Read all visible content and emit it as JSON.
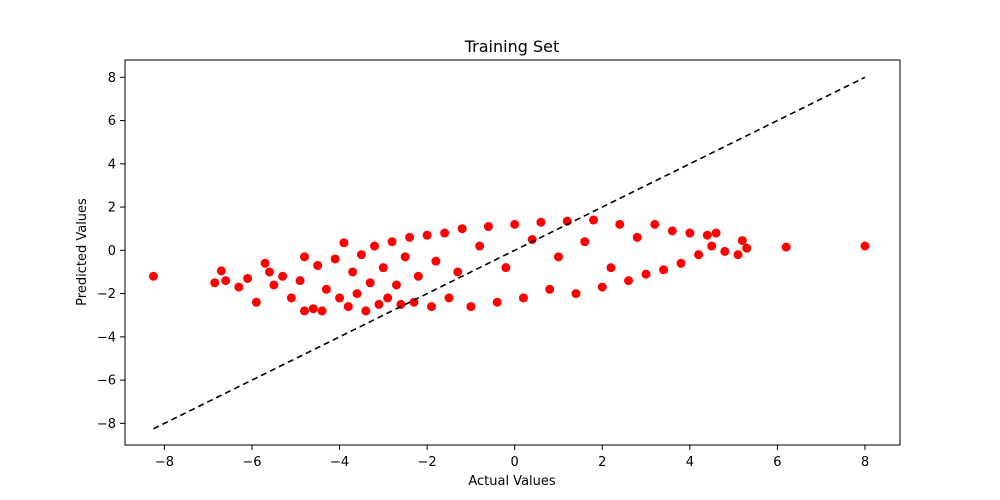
{
  "chart_data": {
    "type": "scatter",
    "title": "Training Set",
    "xlabel": "Actual Values",
    "ylabel": "Predicted Values",
    "xlim": [
      -8.9,
      8.8
    ],
    "ylim": [
      -9.0,
      8.8
    ],
    "xticks": [
      -8,
      -6,
      -4,
      -2,
      0,
      2,
      4,
      6,
      8
    ],
    "yticks": [
      -8,
      -6,
      -4,
      -2,
      0,
      2,
      4,
      6,
      8
    ],
    "xtick_labels": [
      "−8",
      "−6",
      "−4",
      "−2",
      "0",
      "2",
      "4",
      "6",
      "8"
    ],
    "ytick_labels": [
      "−8",
      "−6",
      "−4",
      "−2",
      "0",
      "2",
      "4",
      "6",
      "8"
    ],
    "grid": false,
    "marker_color": "#ff0000",
    "reference_line": {
      "style": "dashed",
      "color": "#000000",
      "from": [
        -8.25,
        -8.25
      ],
      "to": [
        8.0,
        8.0
      ]
    },
    "series": [
      {
        "points": [
          [
            -8.25,
            -1.2
          ],
          [
            -6.85,
            -1.5
          ],
          [
            -6.7,
            -0.95
          ],
          [
            -6.6,
            -1.4
          ],
          [
            -6.3,
            -1.7
          ],
          [
            -6.1,
            -1.3
          ],
          [
            -5.9,
            -2.4
          ],
          [
            -5.7,
            -0.6
          ],
          [
            -5.6,
            -1.0
          ],
          [
            -5.5,
            -1.6
          ],
          [
            -5.3,
            -1.2
          ],
          [
            -5.1,
            -2.2
          ],
          [
            -4.9,
            -1.4
          ],
          [
            -4.8,
            -0.3
          ],
          [
            -4.8,
            -2.8
          ],
          [
            -4.6,
            -2.7
          ],
          [
            -4.5,
            -0.7
          ],
          [
            -4.4,
            -2.8
          ],
          [
            -4.3,
            -1.8
          ],
          [
            -4.1,
            -0.4
          ],
          [
            -4.0,
            -2.2
          ],
          [
            -3.9,
            0.35
          ],
          [
            -3.8,
            -2.6
          ],
          [
            -3.7,
            -1.0
          ],
          [
            -3.6,
            -2.0
          ],
          [
            -3.5,
            -0.2
          ],
          [
            -3.4,
            -2.8
          ],
          [
            -3.3,
            -1.5
          ],
          [
            -3.2,
            0.2
          ],
          [
            -3.1,
            -2.5
          ],
          [
            -3.0,
            -0.8
          ],
          [
            -2.9,
            -2.2
          ],
          [
            -2.8,
            0.4
          ],
          [
            -2.7,
            -1.6
          ],
          [
            -2.6,
            -2.5
          ],
          [
            -2.5,
            -0.3
          ],
          [
            -2.4,
            0.6
          ],
          [
            -2.3,
            -2.4
          ],
          [
            -2.2,
            -1.2
          ],
          [
            -2.0,
            0.7
          ],
          [
            -1.9,
            -2.6
          ],
          [
            -1.8,
            -0.5
          ],
          [
            -1.6,
            0.8
          ],
          [
            -1.5,
            -2.2
          ],
          [
            -1.3,
            -1.0
          ],
          [
            -1.2,
            1.0
          ],
          [
            -1.0,
            -2.6
          ],
          [
            -0.8,
            0.2
          ],
          [
            -0.6,
            1.1
          ],
          [
            -0.4,
            -2.4
          ],
          [
            -0.2,
            -0.8
          ],
          [
            0.0,
            1.2
          ],
          [
            0.2,
            -2.2
          ],
          [
            0.4,
            0.5
          ],
          [
            0.6,
            1.3
          ],
          [
            0.8,
            -1.8
          ],
          [
            1.0,
            -0.3
          ],
          [
            1.2,
            1.35
          ],
          [
            1.4,
            -2.0
          ],
          [
            1.6,
            0.4
          ],
          [
            1.8,
            1.4
          ],
          [
            2.0,
            -1.7
          ],
          [
            2.2,
            -0.8
          ],
          [
            2.4,
            1.2
          ],
          [
            2.6,
            -1.4
          ],
          [
            2.8,
            0.6
          ],
          [
            3.0,
            -1.1
          ],
          [
            3.2,
            1.2
          ],
          [
            3.4,
            -0.9
          ],
          [
            3.6,
            0.9
          ],
          [
            3.8,
            -0.6
          ],
          [
            4.0,
            0.8
          ],
          [
            4.2,
            -0.2
          ],
          [
            4.4,
            0.7
          ],
          [
            4.5,
            0.2
          ],
          [
            4.6,
            0.8
          ],
          [
            4.8,
            -0.05
          ],
          [
            5.1,
            -0.2
          ],
          [
            5.2,
            0.45
          ],
          [
            5.3,
            0.1
          ],
          [
            6.2,
            0.15
          ],
          [
            8.0,
            0.2
          ]
        ]
      }
    ]
  }
}
